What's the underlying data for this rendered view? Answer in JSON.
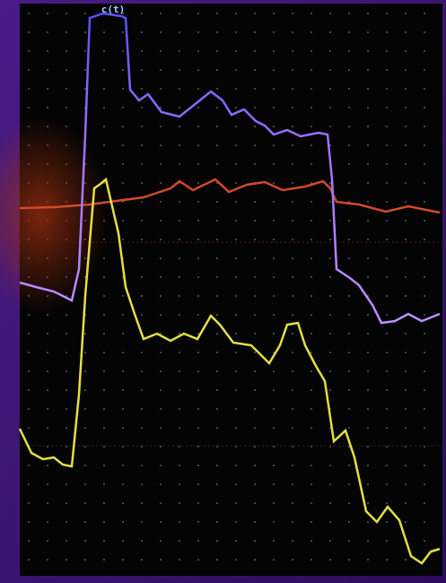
{
  "screen_label": "c(t)"
}
